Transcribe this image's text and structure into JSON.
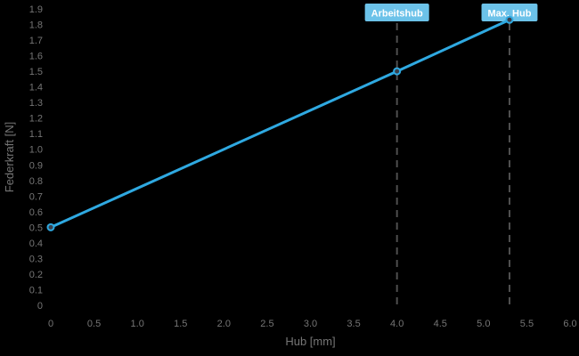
{
  "chart_data": {
    "type": "line",
    "xlabel": "Hub [mm]",
    "ylabel": "Federkraft [N]",
    "xlim": [
      0,
      6.0
    ],
    "ylim": [
      0,
      1.9
    ],
    "x_tick_labels": [
      "0",
      "0.5",
      "1.0",
      "1.5",
      "2.0",
      "2.5",
      "3.0",
      "3.5",
      "4.0",
      "4.5",
      "5.0",
      "5.5",
      "6.0"
    ],
    "y_tick_labels": [
      "0",
      "0.1",
      "0.2",
      "0.3",
      "0.4",
      "0.5",
      "0.6",
      "0.7",
      "0.8",
      "0.9",
      "1.0",
      "1.1",
      "1.2",
      "1.3",
      "1.4",
      "1.5",
      "1.6",
      "1.7",
      "1.8",
      "1.9"
    ],
    "grid": false,
    "legend": false,
    "series": [
      {
        "x": [
          0,
          4.0,
          5.3
        ],
        "y": [
          0.5,
          1.5,
          1.83
        ],
        "marker": "circle"
      }
    ],
    "annotations": [
      {
        "x": 4.0,
        "label": "Arbeitshub"
      },
      {
        "x": 5.3,
        "label": "Max. Hub"
      }
    ]
  },
  "theme": {
    "background": "#000000",
    "line_color": "#2fa9e1",
    "marker_fill": "#3b404b",
    "marker_stroke": "#2fa9e1",
    "dashed_line_color": "#4f4f4f",
    "axis_text_color": "#757575",
    "annotation_box_color": "#6cc2e9",
    "annotation_text_color": "#ffffff"
  }
}
